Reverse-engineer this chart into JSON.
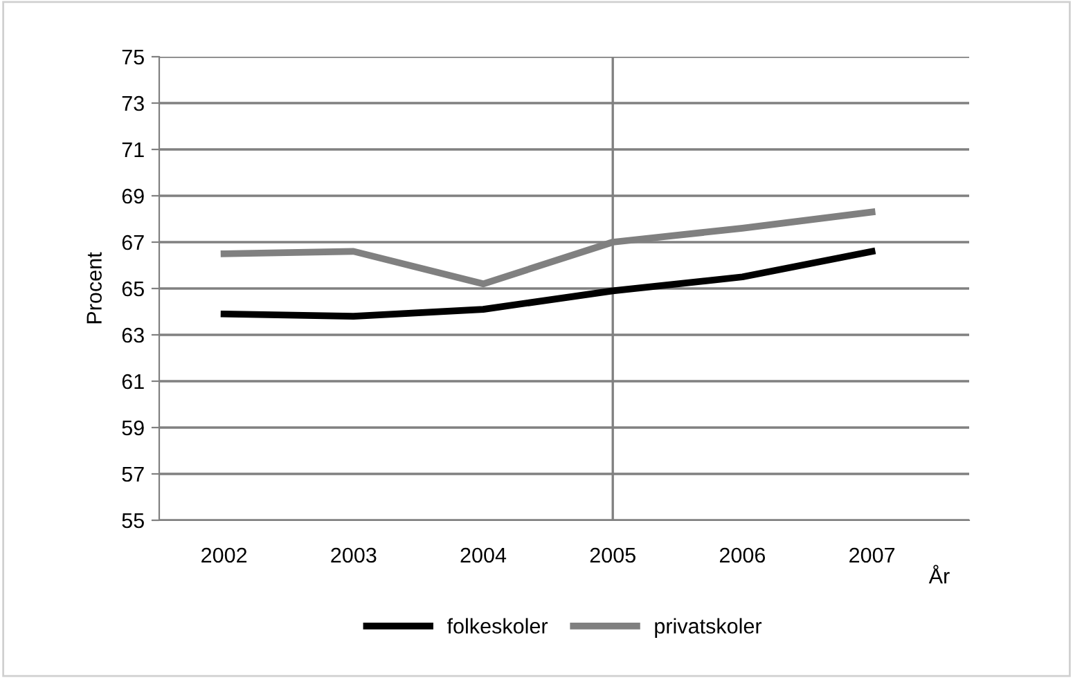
{
  "chart_data": {
    "type": "line",
    "categories": [
      "2002",
      "2003",
      "2004",
      "2005",
      "2006",
      "2007"
    ],
    "series": [
      {
        "name": "folkeskoler",
        "color": "#000000",
        "values": [
          63.9,
          63.8,
          64.1,
          64.9,
          65.5,
          66.6
        ]
      },
      {
        "name": "privatskoler",
        "color": "#808080",
        "values": [
          66.5,
          66.6,
          65.2,
          67.0,
          67.6,
          68.3
        ]
      }
    ],
    "ylabel": "Procent",
    "xlabel": "År",
    "ylim": [
      55,
      75
    ],
    "yticks": [
      55,
      57,
      59,
      61,
      63,
      65,
      67,
      69,
      71,
      73,
      75
    ],
    "grid": "y",
    "legend": "bottom",
    "marker": "none",
    "line_style": "solid",
    "ref_lines": [
      {
        "axis": "x",
        "value": "2005",
        "color": "#808080"
      }
    ]
  }
}
